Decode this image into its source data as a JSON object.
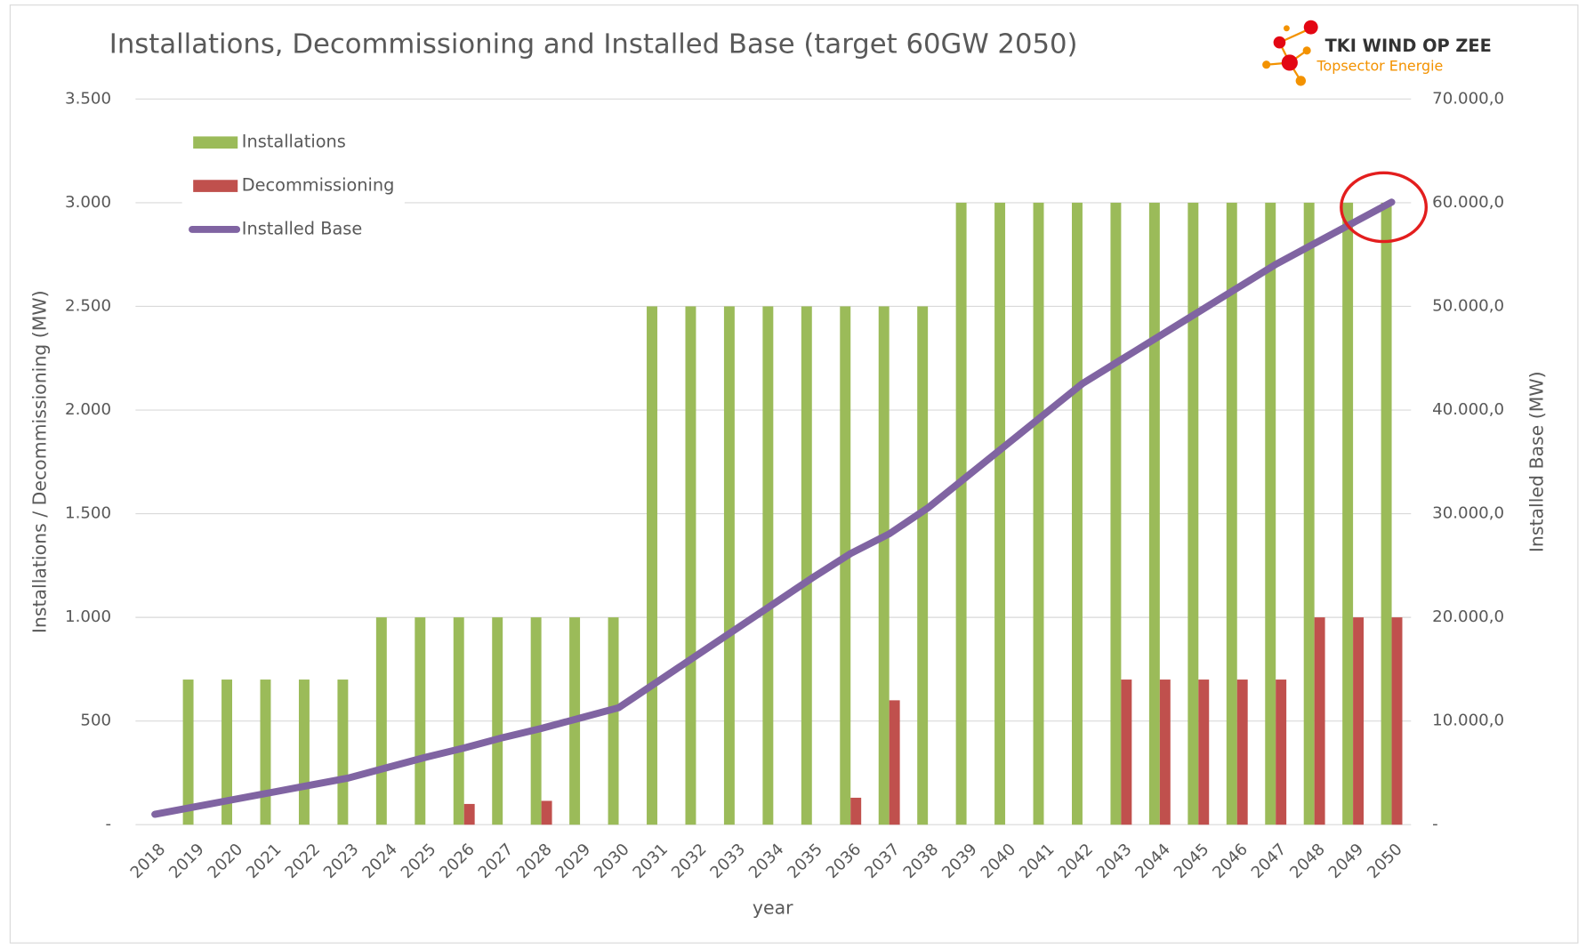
{
  "chart_data": {
    "type": "bar",
    "title": "Installations, Decommissioning and Installed Base (target 60GW 2050)",
    "logo_title": "TKI WIND OP ZEE",
    "logo_subtitle": "Topsector Energie",
    "x_label": "year",
    "y_label": "Installations  / Decommissioning (MW)",
    "y2_label": "Installed Base (MW)",
    "categories": [
      "2018",
      "2019",
      "2020",
      "2021",
      "2022",
      "2023",
      "2024",
      "2025",
      "2026",
      "2027",
      "2028",
      "2029",
      "2030",
      "2031",
      "2032",
      "2033",
      "2034",
      "2035",
      "2036",
      "2037",
      "2038",
      "2039",
      "2040",
      "2041",
      "2042",
      "2043",
      "2044",
      "2045",
      "2046",
      "2047",
      "2048",
      "2049",
      "2050"
    ],
    "series": [
      {
        "name": "Installations",
        "color": "#9bbb59",
        "values": [
          0,
          700,
          700,
          700,
          700,
          700,
          1000,
          1000,
          1000,
          1000,
          1000,
          1000,
          1000,
          2500,
          2500,
          2500,
          2500,
          2500,
          2500,
          2500,
          2500,
          3000,
          3000,
          3000,
          3000,
          3000,
          3000,
          3000,
          3000,
          3000,
          3000,
          3000,
          3000
        ]
      },
      {
        "name": "Decommissioning",
        "color": "#c0504d",
        "values": [
          0,
          0,
          0,
          0,
          0,
          0,
          0,
          0,
          100,
          0,
          115,
          0,
          0,
          0,
          0,
          0,
          0,
          0,
          130,
          600,
          0,
          0,
          0,
          0,
          0,
          700,
          700,
          700,
          700,
          700,
          1000,
          1000,
          1000
        ]
      },
      {
        "name": "Installed Base",
        "color": "#8064a2",
        "type": "line",
        "axis": "y2",
        "values": [
          1000,
          1700,
          2400,
          3100,
          3800,
          4500,
          5500,
          6500,
          7400,
          8400,
          9285,
          10285,
          11285,
          13785,
          16285,
          18785,
          21285,
          23785,
          26155,
          28055,
          30555,
          33555,
          36555,
          39555,
          42555,
          44855,
          47155,
          49455,
          51755,
          54055,
          56055,
          58055,
          60055
        ]
      }
    ],
    "ylim": [
      0,
      3500
    ],
    "yticks": [
      {
        "value": 0,
        "label": "-"
      },
      500,
      {
        "value": 1000,
        "label": "1.000"
      },
      {
        "value": 1500,
        "label": "1.500"
      },
      {
        "value": 2000,
        "label": "2.000"
      },
      {
        "value": 2500,
        "label": "2.500"
      },
      {
        "value": 3000,
        "label": "3.000"
      },
      {
        "value": 3500,
        "label": "3.500"
      }
    ],
    "y2lim": [
      0,
      70000
    ],
    "y2ticks": [
      {
        "value": 0,
        "label": "-"
      },
      {
        "value": 10000,
        "label": "10.000,0"
      },
      {
        "value": 20000,
        "label": "20.000,0"
      },
      {
        "value": 30000,
        "label": "30.000,0"
      },
      {
        "value": 40000,
        "label": "40.000,0"
      },
      {
        "value": 50000,
        "label": "50.000,0"
      },
      {
        "value": 60000,
        "label": "60.000,0"
      },
      {
        "value": 70000,
        "label": "70.000,0"
      }
    ],
    "grid": true,
    "legend": "top-left"
  }
}
